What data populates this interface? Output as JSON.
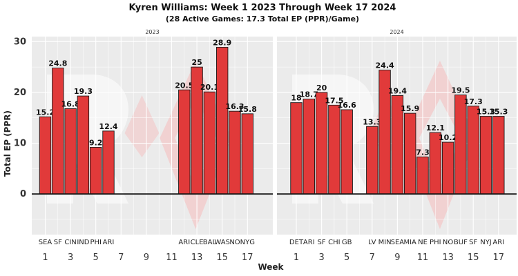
{
  "chart_data": {
    "type": "bar",
    "title": "Kyren Williams: Week 1 2023 Through Week 17 2024",
    "subtitle": "(28 Active Games: 17.3 Total EP (PPR)/Game)",
    "xlabel": "Week",
    "ylabel": "Total EP (PPR)",
    "ylim": [
      -8,
      31
    ],
    "yticks": [
      0,
      10,
      20,
      30
    ],
    "xticks": [
      1,
      3,
      5,
      7,
      9,
      11,
      13,
      15,
      17
    ],
    "grid": true,
    "colors": {
      "bar": "#e13a3a",
      "bar_edge": "#1a1a1a",
      "panel": "#ebebeb",
      "watermark": "#f4c3c3"
    },
    "facets": [
      {
        "label": "2023",
        "bars": [
          {
            "week": 1,
            "team": "SEA",
            "value": 15.2,
            "label": "15.2"
          },
          {
            "week": 2,
            "team": "SF",
            "value": 24.8,
            "label": "24.8"
          },
          {
            "week": 3,
            "team": "CIN",
            "value": 16.8,
            "label": "16.8"
          },
          {
            "week": 4,
            "team": "IND",
            "value": 19.3,
            "label": "19.3"
          },
          {
            "week": 5,
            "team": "PHI",
            "value": 9.2,
            "label": "9.2"
          },
          {
            "week": 6,
            "team": "ARI",
            "value": 12.4,
            "label": "12.4"
          },
          {
            "week": 12,
            "team": "ARI",
            "value": 20.5,
            "label": "20.5"
          },
          {
            "week": 13,
            "team": "CLE",
            "value": 25,
            "label": "25"
          },
          {
            "week": 14,
            "team": "BAL",
            "value": 20.1,
            "label": "20.1"
          },
          {
            "week": 15,
            "team": "WAS",
            "value": 28.9,
            "label": "28.9"
          },
          {
            "week": 16,
            "team": "NO",
            "value": 16.3,
            "label": "16.3"
          },
          {
            "week": 17,
            "team": "NYG",
            "value": 15.8,
            "label": "15.8"
          }
        ]
      },
      {
        "label": "2024",
        "bars": [
          {
            "week": 1,
            "team": "DET",
            "value": 18,
            "label": "18"
          },
          {
            "week": 2,
            "team": "ARI",
            "value": 18.7,
            "label": "18.7"
          },
          {
            "week": 3,
            "team": "SF",
            "value": 20,
            "label": "20"
          },
          {
            "week": 4,
            "team": "CHI",
            "value": 17.5,
            "label": "17.5"
          },
          {
            "week": 5,
            "team": "GB",
            "value": 16.6,
            "label": "16.6"
          },
          {
            "week": 7,
            "team": "LV",
            "value": 13.3,
            "label": "13.3"
          },
          {
            "week": 8,
            "team": "MIN",
            "value": 24.4,
            "label": "24.4"
          },
          {
            "week": 9,
            "team": "SEA",
            "value": 19.4,
            "label": "19.4"
          },
          {
            "week": 10,
            "team": "MIA",
            "value": 15.9,
            "label": "15.9"
          },
          {
            "week": 11,
            "team": "NE",
            "value": 7.3,
            "label": "7.3"
          },
          {
            "week": 12,
            "team": "PHI",
            "value": 12.1,
            "label": "12.1"
          },
          {
            "week": 13,
            "team": "NO",
            "value": 10.2,
            "label": "10.2"
          },
          {
            "week": 14,
            "team": "BUF",
            "value": 19.5,
            "label": "19.5"
          },
          {
            "week": 15,
            "team": "SF",
            "value": 17.3,
            "label": "17.3"
          },
          {
            "week": 16,
            "team": "NYJ",
            "value": 15.3,
            "label": "15.3"
          },
          {
            "week": 17,
            "team": "ARI",
            "value": 15.3,
            "label": "15.3"
          }
        ]
      }
    ]
  }
}
